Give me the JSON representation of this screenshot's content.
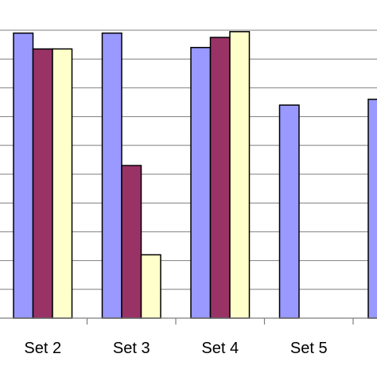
{
  "chart_data": {
    "type": "bar",
    "title": "",
    "xlabel": "",
    "ylabel": "",
    "categories": [
      "Set 2",
      "Set 3",
      "Set 4",
      "Set 5",
      ""
    ],
    "ylim": [
      0,
      10
    ],
    "grid": true,
    "legend": "none",
    "series": [
      {
        "color": "#9999ff",
        "values": [
          9.9,
          9.9,
          9.4,
          7.4,
          7.6
        ]
      },
      {
        "color": "#993366",
        "values": [
          9.35,
          5.3,
          9.75,
          null,
          null
        ]
      },
      {
        "color": "#ffffcc",
        "values": [
          9.35,
          2.2,
          9.95,
          null,
          null
        ]
      }
    ]
  }
}
